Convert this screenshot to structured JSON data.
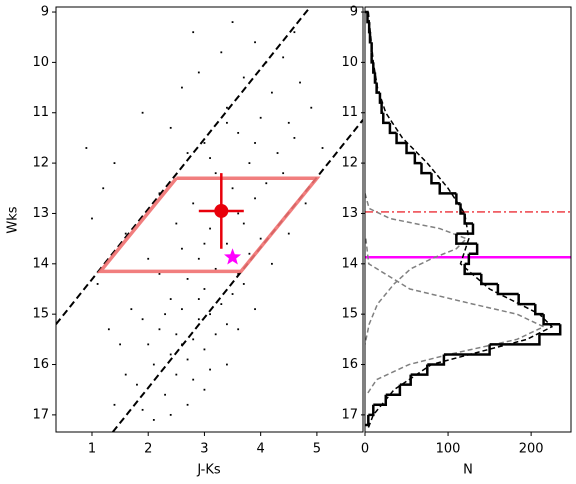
{
  "chart_data": [
    {
      "type": "scatter",
      "xlabel": "J-Ks",
      "ylabel": "Wks",
      "xlim": [
        0.36,
        5.82
      ],
      "ylim": [
        17.34,
        8.9
      ],
      "xticks": [
        1,
        2,
        3,
        4,
        5
      ],
      "yticks": [
        9,
        10,
        11,
        12,
        13,
        14,
        15,
        16,
        17
      ],
      "points": {
        "color": "#000000",
        "x": [
          1.8,
          2.1,
          2.4,
          2.6,
          2.8,
          3.0,
          2.5,
          2.2,
          2.9,
          3.2,
          2.7,
          3.1,
          2.3,
          1.5,
          1.9,
          2.6,
          3.3,
          3.0,
          2.7,
          3.5,
          2.4,
          3.2,
          3.6,
          2.9,
          3.4,
          3.8,
          2.6,
          3.1,
          3.7,
          3.3,
          3.9,
          2.8,
          3.5,
          4.1,
          3.2,
          3.8,
          4.3,
          3.0,
          3.6,
          4.0,
          4.5,
          3.4,
          4.2,
          4.7,
          3.7,
          4.4,
          3.9,
          4.6,
          2.9,
          3.3,
          1.2,
          1.0,
          1.4,
          0.9,
          1.6,
          1.1,
          1.7,
          1.3,
          2.0,
          2.2,
          2.4,
          2.6,
          1.9,
          2.8,
          3.5,
          4.9,
          5.1,
          4.8,
          4.5,
          4.2,
          3.9,
          3.6,
          3.4,
          3.0,
          2.7,
          2.4,
          2.1,
          1.9,
          1.6,
          1.4,
          2.0,
          2.3,
          2.5,
          2.8,
          3.1,
          2.9,
          3.4,
          3.7,
          4.0,
          3.6,
          4.4,
          3.1,
          2.7,
          3.4,
          4.1,
          2.5,
          3.0,
          3.9,
          4.6,
          2.2
        ],
        "y": [
          16.4,
          16.0,
          15.8,
          15.6,
          15.5,
          15.7,
          16.2,
          15.3,
          15.1,
          15.4,
          15.9,
          16.1,
          16.6,
          15.6,
          15.1,
          14.9,
          14.8,
          14.5,
          14.3,
          14.6,
          14.7,
          14.1,
          14.2,
          13.9,
          13.6,
          13.8,
          13.7,
          13.3,
          13.2,
          12.9,
          12.7,
          12.8,
          12.5,
          12.4,
          12.2,
          12.0,
          11.8,
          11.6,
          11.4,
          11.1,
          11.2,
          10.9,
          10.6,
          10.4,
          10.3,
          9.9,
          9.6,
          9.4,
          10.2,
          9.8,
          12.5,
          13.1,
          12.0,
          11.7,
          13.4,
          14.4,
          14.9,
          15.3,
          13.9,
          12.6,
          11.3,
          10.5,
          11.0,
          9.4,
          9.2,
          10.9,
          11.7,
          12.8,
          13.4,
          14.0,
          14.9,
          15.3,
          16.0,
          16.5,
          16.8,
          17.0,
          17.1,
          16.9,
          16.2,
          16.8,
          15.6,
          15.0,
          15.4,
          16.3,
          15.0,
          14.7,
          15.2,
          14.4,
          13.5,
          13.0,
          12.2,
          11.9,
          11.8,
          11.2,
          10.0,
          13.2,
          13.6,
          11.6,
          11.5,
          14.2
        ]
      },
      "boundary_lines": [
        {
          "color": "#000000",
          "x": [
            0.36,
            4.88
          ],
          "y": [
            15.2,
            8.9
          ]
        },
        {
          "color": "#000000",
          "x": [
            1.37,
            5.82
          ],
          "y": [
            17.34,
            11.14
          ]
        }
      ],
      "region": {
        "color": "#f07070",
        "x": [
          2.5,
          5.0,
          3.65,
          1.15,
          2.5
        ],
        "y": [
          12.3,
          12.3,
          14.15,
          14.15,
          12.3
        ]
      },
      "marker": {
        "color": "#e8000b",
        "x": 3.3,
        "y": 12.95,
        "xerr": 0.4,
        "yerr": 0.75
      },
      "star": {
        "color": "#ff00ff",
        "x": 3.5,
        "y": 13.87
      }
    },
    {
      "type": "histogram",
      "xlabel": "N",
      "xlim": [
        0,
        248
      ],
      "ylim": [
        17.34,
        8.9
      ],
      "xticks": [
        0,
        100,
        200
      ],
      "yticks": [
        9,
        10,
        11,
        12,
        13,
        14,
        15,
        16,
        17
      ],
      "color": "#000000",
      "bins": [
        9.0,
        9.2,
        9.4,
        9.6,
        9.8,
        10.0,
        10.2,
        10.4,
        10.6,
        10.8,
        11.0,
        11.2,
        11.4,
        11.6,
        11.8,
        12.0,
        12.2,
        12.4,
        12.6,
        12.8,
        13.0,
        13.2,
        13.4,
        13.6,
        13.8,
        14.0,
        14.2,
        14.4,
        14.6,
        14.8,
        15.0,
        15.2,
        15.4,
        15.6,
        15.8,
        16.0,
        16.2,
        16.4,
        16.6,
        16.8,
        17.0,
        17.2
      ],
      "counts": [
        3,
        5,
        6,
        8,
        8,
        10,
        12,
        14,
        18,
        20,
        22,
        30,
        38,
        50,
        60,
        68,
        80,
        90,
        110,
        115,
        120,
        130,
        110,
        135,
        125,
        120,
        140,
        160,
        185,
        205,
        215,
        235,
        210,
        150,
        95,
        75,
        55,
        42,
        25,
        10,
        4
      ],
      "curves": [
        {
          "color": "#000000",
          "y": [
            9.0,
            9.5,
            10,
            10.5,
            11,
            11.5,
            12,
            12.5,
            13,
            13.5,
            14,
            14.5,
            15,
            15.25,
            15.5,
            16,
            16.5,
            17,
            17.3
          ],
          "n": [
            4,
            7,
            10,
            15,
            25,
            45,
            75,
            100,
            120,
            125,
            115,
            150,
            210,
            225,
            195,
            80,
            35,
            10,
            3
          ]
        },
        {
          "color": "#808080",
          "y": [
            12.6,
            12.9,
            13.1,
            13.3,
            13.5,
            13.7,
            13.9,
            14.1,
            14.4,
            14.8,
            15.2,
            15.6
          ],
          "n": [
            0,
            5,
            30,
            90,
            122,
            110,
            80,
            55,
            35,
            15,
            5,
            0
          ]
        },
        {
          "color": "#808080",
          "y": [
            13.5,
            14.0,
            14.5,
            14.8,
            15.0,
            15.25,
            15.5,
            15.8,
            16.0,
            16.3,
            16.6
          ],
          "n": [
            1,
            4.5,
            54,
            130,
            183,
            215,
            183,
            101,
            53,
            14,
            2
          ]
        }
      ],
      "hlines": [
        {
          "color": "#e8000b",
          "y": 12.97,
          "style": "dashdot"
        },
        {
          "color": "#ff00ff",
          "y": 13.87,
          "style": "solid"
        }
      ]
    }
  ]
}
